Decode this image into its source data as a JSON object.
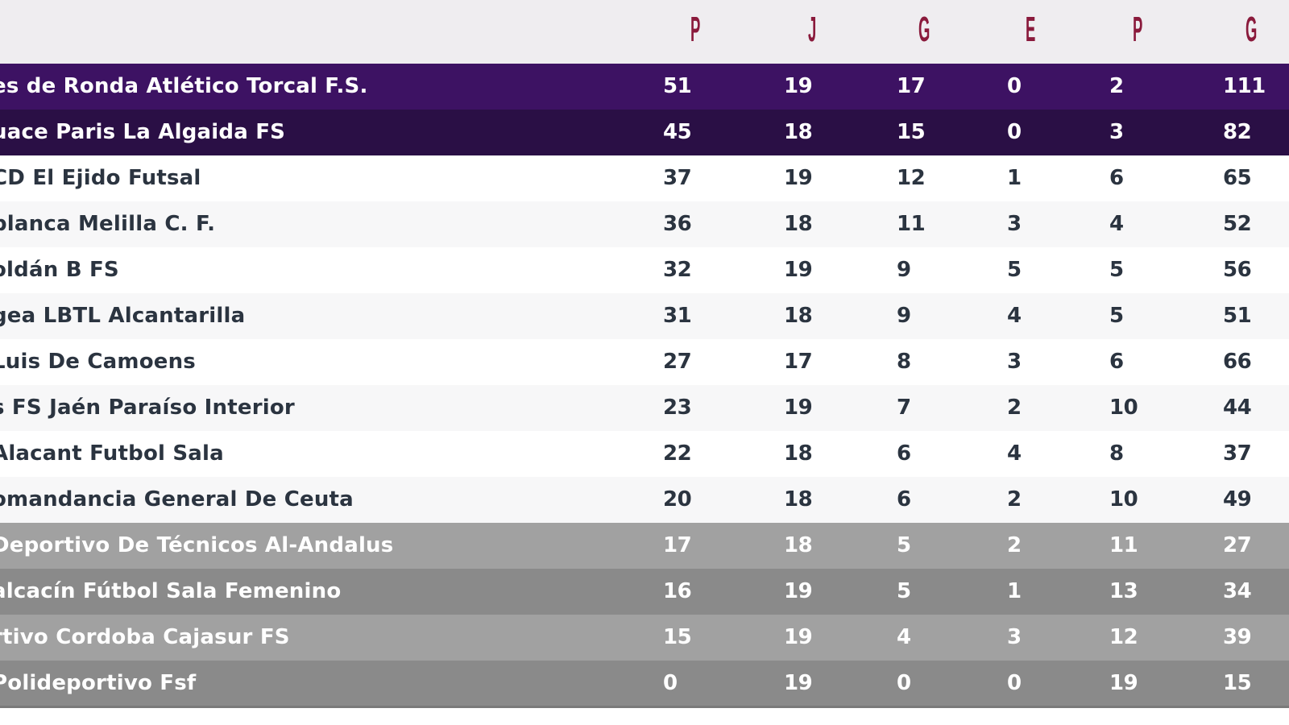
{
  "columns": [
    "P",
    "J",
    "G",
    "E",
    "P",
    "G"
  ],
  "rows": [
    {
      "team": "es de Ronda Atlético Torcal F.S.",
      "pts": "51",
      "j": "19",
      "g": "17",
      "e": "0",
      "p": "2",
      "gf": "111",
      "bg": "#3d1263",
      "fg": "#ffffff"
    },
    {
      "team": "uace Paris La Algaida FS",
      "pts": "45",
      "j": "18",
      "g": "15",
      "e": "0",
      "p": "3",
      "gf": "82",
      "bg": "#2a0f45",
      "fg": "#ffffff"
    },
    {
      "team": "CD El Ejido Futsal",
      "pts": "37",
      "j": "19",
      "g": "12",
      "e": "1",
      "p": "6",
      "gf": "65",
      "bg": "#ffffff",
      "fg": "#2b3440"
    },
    {
      "team": "blanca Melilla C. F.",
      "pts": "36",
      "j": "18",
      "g": "11",
      "e": "3",
      "p": "4",
      "gf": "52",
      "bg": "#f7f7f8",
      "fg": "#2b3440"
    },
    {
      "team": "oldán B FS",
      "pts": "32",
      "j": "19",
      "g": "9",
      "e": "5",
      "p": "5",
      "gf": "56",
      "bg": "#ffffff",
      "fg": "#2b3440"
    },
    {
      "team": "gea LBTL Alcantarilla",
      "pts": "31",
      "j": "18",
      "g": "9",
      "e": "4",
      "p": "5",
      "gf": "51",
      "bg": "#f7f7f8",
      "fg": "#2b3440"
    },
    {
      "team": "Luis De Camoens",
      "pts": "27",
      "j": "17",
      "g": "8",
      "e": "3",
      "p": "6",
      "gf": "66",
      "bg": "#ffffff",
      "fg": "#2b3440"
    },
    {
      "team": "s FS Jaén Paraíso Interior",
      "pts": "23",
      "j": "19",
      "g": "7",
      "e": "2",
      "p": "10",
      "gf": "44",
      "bg": "#f7f7f8",
      "fg": "#2b3440"
    },
    {
      "team": "Alacant Futbol Sala",
      "pts": "22",
      "j": "18",
      "g": "6",
      "e": "4",
      "p": "8",
      "gf": "37",
      "bg": "#ffffff",
      "fg": "#2b3440"
    },
    {
      "team": "omandancia General De Ceuta",
      "pts": "20",
      "j": "18",
      "g": "6",
      "e": "2",
      "p": "10",
      "gf": "49",
      "bg": "#f7f7f8",
      "fg": "#2b3440"
    },
    {
      "team": "Deportivo De Técnicos Al-Andalus",
      "pts": "17",
      "j": "18",
      "g": "5",
      "e": "2",
      "p": "11",
      "gf": "27",
      "bg": "#a1a1a1",
      "fg": "#ffffff"
    },
    {
      "team": "alcacín Fútbol Sala Femenino",
      "pts": "16",
      "j": "19",
      "g": "5",
      "e": "1",
      "p": "13",
      "gf": "34",
      "bg": "#8a8a8a",
      "fg": "#ffffff"
    },
    {
      "team": "rtivo Cordoba Cajasur FS",
      "pts": "15",
      "j": "19",
      "g": "4",
      "e": "3",
      "p": "12",
      "gf": "39",
      "bg": "#a1a1a1",
      "fg": "#ffffff"
    },
    {
      "team": "Polideportivo Fsf",
      "pts": "0",
      "j": "19",
      "g": "0",
      "e": "0",
      "p": "19",
      "gf": "15",
      "bg": "#8a8a8a",
      "fg": "#ffffff"
    }
  ]
}
